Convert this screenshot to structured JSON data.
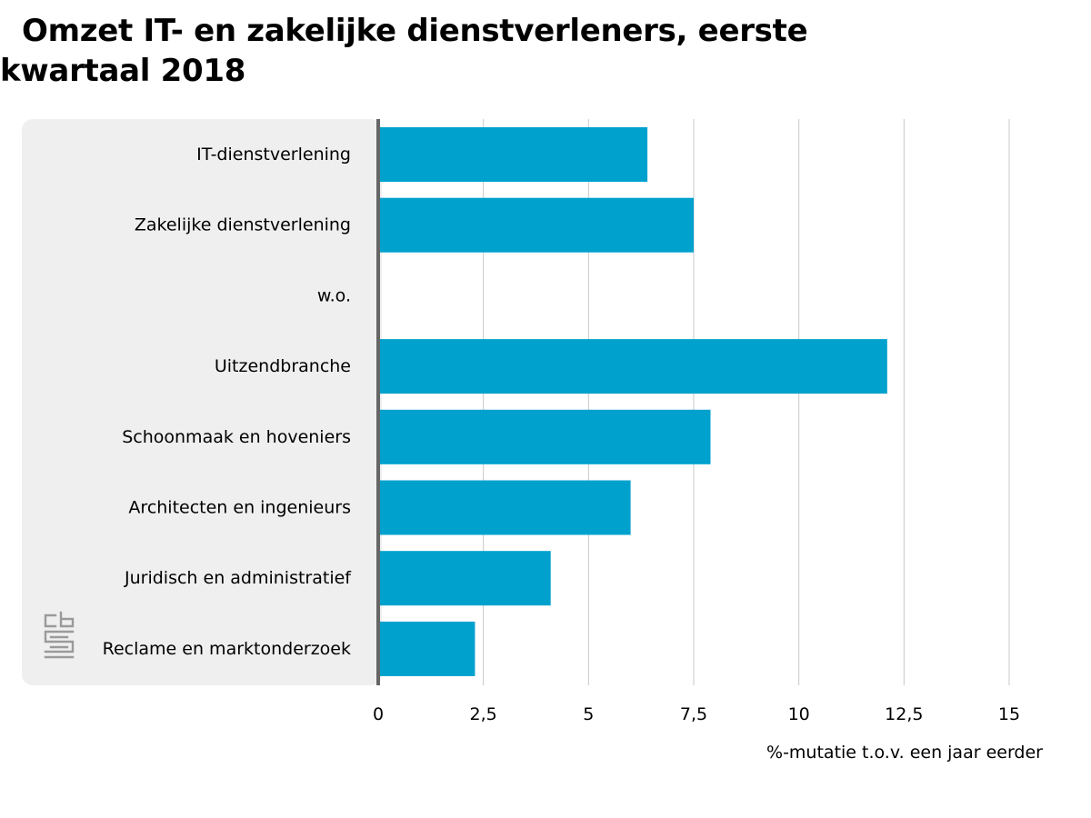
{
  "chart_data": {
    "type": "bar",
    "orientation": "horizontal",
    "title": "Omzet IT- en zakelijke dienstverleners, eerste kwartaal 2018",
    "xlabel": "%-mutatie t.o.v. een jaar eerder",
    "ylabel": "",
    "xlim": [
      0,
      15
    ],
    "xticks": [
      0,
      2.5,
      5,
      7.5,
      10,
      12.5,
      15
    ],
    "xtick_labels": [
      "0",
      "2,5",
      "5",
      "7,5",
      "10",
      "12,5",
      "15"
    ],
    "grid": true,
    "legend": "none",
    "categories": [
      "IT-dienstverlening",
      "Zakelijke dienstverlening",
      "w.o.",
      "Uitzendbranche",
      "Schoonmaak en hoveniers",
      "Architecten en ingenieurs",
      "Juridisch en administratief",
      "Reclame en marktonderzoek"
    ],
    "values": [
      6.4,
      7.5,
      null,
      12.1,
      7.9,
      6.0,
      4.1,
      2.3
    ],
    "bar_color": "#00a1cd",
    "label_panel_color": "#efefef",
    "axis_color": "#666666",
    "grid_color": "#c8c8c8"
  },
  "logo": {
    "text": "cbs",
    "icon": "cbs-logo-icon",
    "color": "#9a9a9a"
  }
}
